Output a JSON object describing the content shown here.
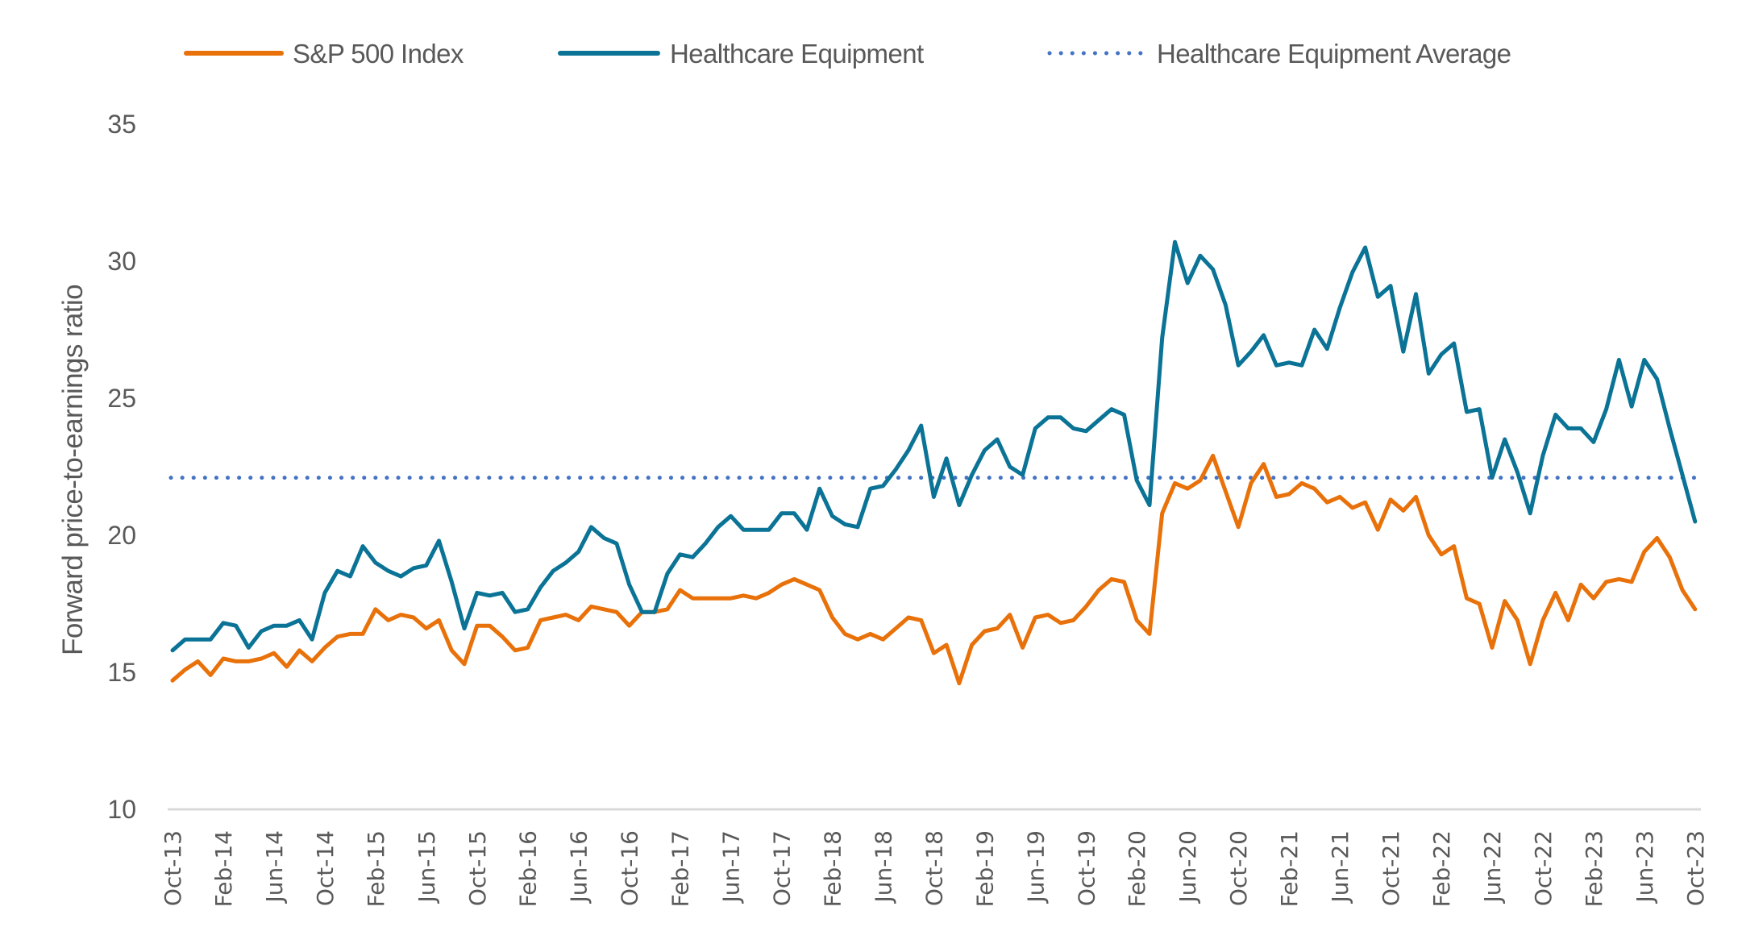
{
  "chart_data": {
    "type": "line",
    "title": "",
    "xlabel": "",
    "ylabel": "Forward price-to-earnings ratio",
    "ylim": [
      10,
      35
    ],
    "yticks": [
      10,
      15,
      20,
      25,
      30,
      35
    ],
    "grid": false,
    "legend_position": "top",
    "x_start": "Oct-13",
    "x_end": "Oct-23",
    "x_frequency": "monthly",
    "xtick_labels": [
      "Oct-13",
      "Feb-14",
      "Jun-14",
      "Oct-14",
      "Feb-15",
      "Jun-15",
      "Oct-15",
      "Feb-16",
      "Jun-16",
      "Oct-16",
      "Feb-17",
      "Jun-17",
      "Oct-17",
      "Feb-18",
      "Jun-18",
      "Oct-18",
      "Feb-19",
      "Jun-19",
      "Oct-19",
      "Feb-20",
      "Jun-20",
      "Oct-20",
      "Feb-21",
      "Jun-21",
      "Oct-21",
      "Feb-22",
      "Jun-22",
      "Oct-22",
      "Feb-23",
      "Jun-23",
      "Oct-23"
    ],
    "series": [
      {
        "name": "S&P 500 Index",
        "color": "#E8710A",
        "style": "solid",
        "values": [
          14.7,
          15.1,
          15.4,
          14.9,
          15.5,
          15.4,
          15.4,
          15.5,
          15.7,
          15.2,
          15.8,
          15.4,
          15.9,
          16.3,
          16.4,
          16.4,
          17.3,
          16.9,
          17.1,
          17.0,
          16.6,
          16.9,
          15.8,
          15.3,
          16.7,
          16.7,
          16.3,
          15.8,
          15.9,
          16.9,
          17.0,
          17.1,
          16.9,
          17.4,
          17.3,
          17.2,
          16.7,
          17.2,
          17.2,
          17.3,
          18.0,
          17.7,
          17.7,
          17.7,
          17.7,
          17.8,
          17.7,
          17.9,
          18.2,
          18.4,
          18.2,
          18.0,
          17.0,
          16.4,
          16.2,
          16.4,
          16.2,
          16.6,
          17.0,
          16.9,
          15.7,
          16.0,
          14.6,
          16.0,
          16.5,
          16.6,
          17.1,
          15.9,
          17.0,
          17.1,
          16.8,
          16.9,
          17.4,
          18.0,
          18.4,
          18.3,
          16.9,
          16.4,
          20.8,
          21.9,
          21.7,
          22.0,
          22.9,
          21.6,
          20.3,
          21.9,
          22.6,
          21.4,
          21.5,
          21.9,
          21.7,
          21.2,
          21.4,
          21.0,
          21.2,
          20.2,
          21.3,
          20.9,
          21.4,
          20.0,
          19.3,
          19.6,
          17.7,
          17.5,
          15.9,
          17.6,
          16.9,
          15.3,
          16.9,
          17.9,
          16.9,
          18.2,
          17.7,
          18.3,
          18.4,
          18.3,
          19.4,
          19.9,
          19.2,
          18.0,
          17.3
        ]
      },
      {
        "name": "Healthcare Equipment",
        "color": "#0A7396",
        "style": "solid",
        "values": [
          15.8,
          16.2,
          16.2,
          16.2,
          16.8,
          16.7,
          15.9,
          16.5,
          16.7,
          16.7,
          16.9,
          16.2,
          17.9,
          18.7,
          18.5,
          19.6,
          19.0,
          18.7,
          18.5,
          18.8,
          18.9,
          19.8,
          18.3,
          16.6,
          17.9,
          17.8,
          17.9,
          17.2,
          17.3,
          18.1,
          18.7,
          19.0,
          19.4,
          20.3,
          19.9,
          19.7,
          18.2,
          17.2,
          17.2,
          18.6,
          19.3,
          19.2,
          19.7,
          20.3,
          20.7,
          20.2,
          20.2,
          20.2,
          20.8,
          20.8,
          20.2,
          21.7,
          20.7,
          20.4,
          20.3,
          21.7,
          21.8,
          22.4,
          23.1,
          24.0,
          21.4,
          22.8,
          21.1,
          22.2,
          23.1,
          23.5,
          22.5,
          22.2,
          23.9,
          24.3,
          24.3,
          23.9,
          23.8,
          24.2,
          24.6,
          24.4,
          22.0,
          21.1,
          27.2,
          30.7,
          29.2,
          30.2,
          29.7,
          28.4,
          26.2,
          26.7,
          27.3,
          26.2,
          26.3,
          26.2,
          27.5,
          26.8,
          28.3,
          29.6,
          30.5,
          28.7,
          29.1,
          26.7,
          28.8,
          25.9,
          26.6,
          27.0,
          24.5,
          24.6,
          22.1,
          23.5,
          22.3,
          20.8,
          22.9,
          24.4,
          23.9,
          23.9,
          23.4,
          24.6,
          26.4,
          24.7,
          26.4,
          25.7,
          23.9,
          22.2,
          20.5
        ]
      },
      {
        "name": "Healthcare Equipment Average",
        "color": "#4472C4",
        "style": "dotted",
        "constant": 22.1
      }
    ]
  },
  "legend": [
    {
      "label": "S&P 500 Index",
      "color": "#E8710A",
      "style": "solid"
    },
    {
      "label": "Healthcare Equipment",
      "color": "#0A7396",
      "style": "solid"
    },
    {
      "label": "Healthcare Equipment Average",
      "color": "#4472C4",
      "style": "dotted"
    }
  ],
  "axis": {
    "ylabel": "Forward price-to-earnings ratio",
    "axis_line_color": "#D9D9D9",
    "text_color": "#595959"
  }
}
